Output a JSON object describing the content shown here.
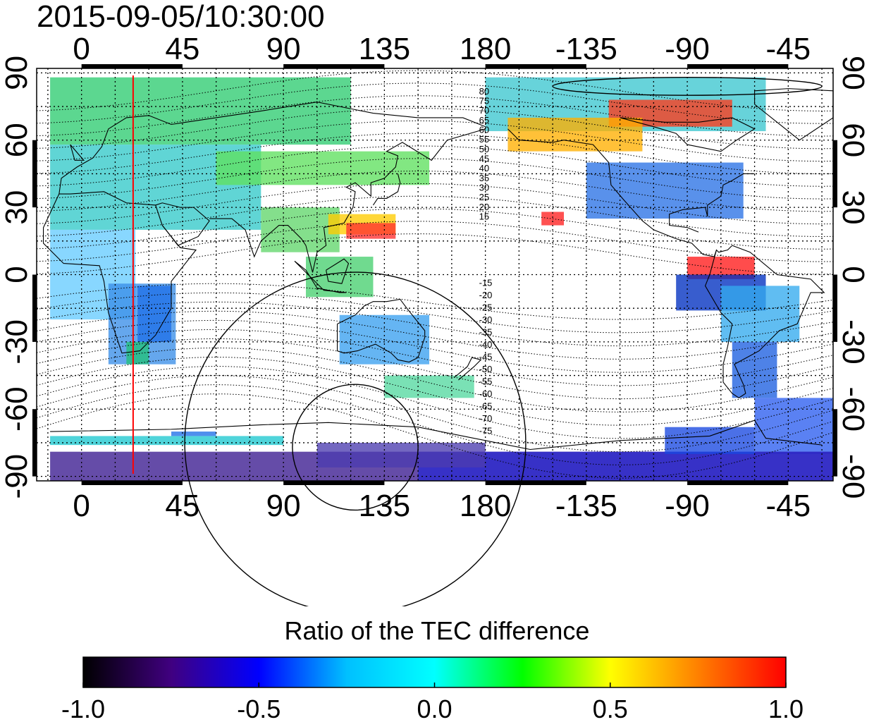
{
  "title": "2015-09-05/10:30:00",
  "map": {
    "projection": "cylindrical",
    "lon_labels": [
      "0",
      "45",
      "90",
      "135",
      "180",
      "-135",
      "-90",
      "-45"
    ],
    "lat_labels": [
      "90",
      "60",
      "30",
      "0",
      "-30",
      "-60",
      "-90"
    ],
    "lon_values": [
      0,
      45,
      90,
      135,
      180,
      225,
      270,
      315
    ],
    "lat_values": [
      90,
      60,
      30,
      0,
      -30,
      -60,
      -90
    ],
    "lon_range": [
      -20,
      335
    ],
    "lat_range": [
      -92,
      92
    ],
    "marker_line": {
      "lon": 23,
      "color": "#ff0000"
    },
    "magnetic_lat_labels_north": [
      "80",
      "75",
      "70",
      "65",
      "60",
      "55",
      "50",
      "45",
      "40",
      "35",
      "30",
      "25",
      "20",
      "15"
    ],
    "magnetic_lat_labels_south": [
      "-15",
      "-20",
      "-25",
      "-30",
      "-35",
      "-40",
      "-45",
      "-50",
      "-55",
      "-60",
      "-65",
      "-70",
      "-75"
    ],
    "grid": "dotted"
  },
  "colorbar": {
    "title": "Ratio of the TEC difference",
    "min": -1.0,
    "max": 1.0,
    "tick_labels": [
      "-1.0",
      "-0.5",
      "0.0",
      "0.5",
      "1.0"
    ],
    "colors": [
      "#000000",
      "#400080",
      "#0000ff",
      "#00c0ff",
      "#00ffff",
      "#00ff00",
      "#ffff00",
      "#ff8000",
      "#ff0000"
    ]
  }
}
